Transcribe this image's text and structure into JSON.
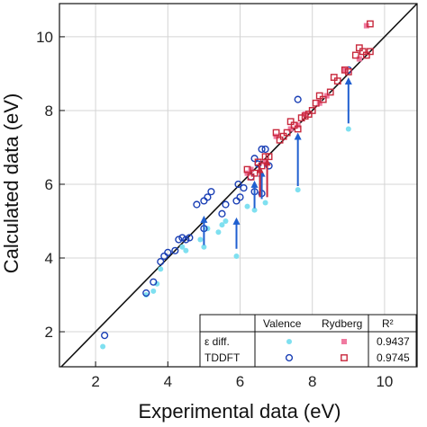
{
  "chart_data": {
    "type": "scatter",
    "xlabel": "Experimental data (eV)",
    "ylabel": "Calculated data (eV)",
    "xlim": [
      1.0,
      10.9
    ],
    "ylim": [
      1.05,
      10.9
    ],
    "xticks": [
      2,
      4,
      6,
      8,
      10
    ],
    "yticks": [
      2,
      4,
      6,
      8,
      10
    ],
    "grid": true,
    "diagonal": true,
    "colors": {
      "valence_filled": "#7fe0f0",
      "valence_open": "#1a3fb5",
      "rydberg_filled": "#f07aa0",
      "rydberg_open": "#c8283c",
      "arrow_blue": "#1f5fd0",
      "arrow_red": "#c8283c"
    },
    "series": [
      {
        "key": "eps_valence",
        "marker": "filled-circle",
        "color": "#7fe0f0",
        "points": [
          [
            2.2,
            1.6
          ],
          [
            3.4,
            3.0
          ],
          [
            3.6,
            3.1
          ],
          [
            3.7,
            3.3
          ],
          [
            3.8,
            3.7
          ],
          [
            4.4,
            4.3
          ],
          [
            4.5,
            4.2
          ],
          [
            4.9,
            4.5
          ],
          [
            5.0,
            4.3
          ],
          [
            5.1,
            4.8
          ],
          [
            5.4,
            4.7
          ],
          [
            5.5,
            4.9
          ],
          [
            5.6,
            5.0
          ],
          [
            5.9,
            4.05
          ],
          [
            6.2,
            5.4
          ],
          [
            6.4,
            5.3
          ],
          [
            6.7,
            5.5
          ],
          [
            7.6,
            5.85
          ],
          [
            9.0,
            7.5
          ]
        ]
      },
      {
        "key": "tddft_valence",
        "marker": "open-circle",
        "color": "#1a3fb5",
        "points": [
          [
            2.25,
            1.9
          ],
          [
            3.4,
            3.05
          ],
          [
            3.6,
            3.35
          ],
          [
            3.8,
            3.9
          ],
          [
            3.9,
            4.05
          ],
          [
            4.0,
            4.15
          ],
          [
            4.2,
            4.2
          ],
          [
            4.3,
            4.5
          ],
          [
            4.4,
            4.55
          ],
          [
            4.5,
            4.5
          ],
          [
            4.6,
            4.55
          ],
          [
            4.8,
            5.45
          ],
          [
            5.0,
            5.55
          ],
          [
            5.0,
            4.8
          ],
          [
            5.1,
            5.65
          ],
          [
            5.2,
            5.8
          ],
          [
            5.5,
            5.2
          ],
          [
            5.6,
            5.45
          ],
          [
            5.9,
            5.55
          ],
          [
            5.95,
            6.0
          ],
          [
            6.0,
            5.65
          ],
          [
            6.1,
            5.9
          ],
          [
            6.3,
            6.2
          ],
          [
            6.4,
            5.8
          ],
          [
            6.4,
            6.7
          ],
          [
            6.5,
            6.55
          ],
          [
            6.6,
            5.75
          ],
          [
            6.6,
            6.95
          ],
          [
            6.7,
            6.95
          ],
          [
            6.8,
            6.5
          ],
          [
            7.6,
            8.3
          ],
          [
            9.0,
            9.1
          ]
        ]
      },
      {
        "key": "eps_rydberg",
        "marker": "filled-square",
        "color": "#f07aa0",
        "points": [
          [
            6.2,
            6.3
          ],
          [
            6.3,
            6.4
          ],
          [
            6.7,
            6.6
          ],
          [
            7.0,
            7.3
          ],
          [
            7.4,
            7.5
          ],
          [
            7.6,
            7.6
          ],
          [
            7.8,
            7.9
          ],
          [
            8.2,
            8.2
          ],
          [
            8.4,
            8.4
          ],
          [
            8.9,
            9.1
          ],
          [
            9.3,
            9.4
          ],
          [
            9.5,
            10.3
          ]
        ]
      },
      {
        "key": "tddft_rydberg",
        "marker": "open-square",
        "color": "#c8283c",
        "points": [
          [
            6.2,
            6.4
          ],
          [
            6.3,
            6.2
          ],
          [
            6.4,
            6.3
          ],
          [
            6.5,
            6.6
          ],
          [
            6.6,
            6.5
          ],
          [
            6.7,
            6.75
          ],
          [
            6.8,
            6.75
          ],
          [
            7.0,
            7.4
          ],
          [
            7.1,
            7.2
          ],
          [
            7.2,
            7.3
          ],
          [
            7.3,
            7.4
          ],
          [
            7.4,
            7.7
          ],
          [
            7.5,
            7.6
          ],
          [
            7.6,
            7.5
          ],
          [
            7.7,
            7.8
          ],
          [
            7.8,
            7.85
          ],
          [
            7.9,
            7.9
          ],
          [
            8.0,
            8.0
          ],
          [
            8.1,
            8.2
          ],
          [
            8.2,
            8.4
          ],
          [
            8.3,
            8.3
          ],
          [
            8.5,
            8.5
          ],
          [
            8.6,
            8.9
          ],
          [
            8.7,
            8.8
          ],
          [
            8.9,
            9.1
          ],
          [
            9.0,
            9.05
          ],
          [
            9.2,
            9.5
          ],
          [
            9.3,
            9.7
          ],
          [
            9.4,
            9.6
          ],
          [
            9.5,
            9.5
          ],
          [
            9.6,
            9.6
          ],
          [
            9.6,
            10.35
          ]
        ]
      }
    ],
    "arrows": [
      {
        "x": 5.0,
        "from": 4.35,
        "to": 5.15,
        "color": "#1f5fd0"
      },
      {
        "x": 5.9,
        "from": 4.25,
        "to": 5.1,
        "color": "#1f5fd0"
      },
      {
        "x": 6.4,
        "from": 5.35,
        "to": 6.1,
        "color": "#1f5fd0"
      },
      {
        "x": 6.6,
        "from": 5.6,
        "to": 6.4,
        "color": "#1f5fd0"
      },
      {
        "x": 7.6,
        "from": 5.95,
        "to": 7.4,
        "color": "#1f5fd0"
      },
      {
        "x": 9.0,
        "from": 7.65,
        "to": 8.9,
        "color": "#1f5fd0"
      },
      {
        "x": 6.55,
        "from": 5.65,
        "to": 6.5,
        "color": "#c8283c"
      },
      {
        "x": 6.75,
        "from": 5.65,
        "to": 6.7,
        "color": "#c8283c"
      }
    ],
    "legend": {
      "placement": "bottom-right",
      "header": [
        "",
        "Valence",
        "Rydberg",
        "R²"
      ],
      "rows": [
        {
          "label": "ε diff.",
          "r2": "0.9437"
        },
        {
          "label": "TDDFT",
          "r2": "0.9745"
        }
      ]
    }
  }
}
